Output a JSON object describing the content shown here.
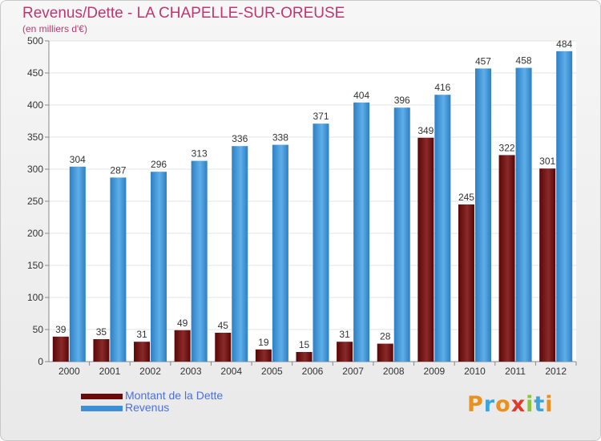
{
  "header": {
    "title": "Revenus/Dette - LA CHAPELLE-SUR-OREUSE",
    "subtitle": "(en milliers d'€)"
  },
  "chart_data": {
    "type": "bar",
    "title": "Revenus/Dette - LA CHAPELLE-SUR-OREUSE",
    "subtitle": "(en milliers d'€)",
    "xlabel": "",
    "ylabel": "",
    "categories": [
      "2000",
      "2001",
      "2002",
      "2003",
      "2004",
      "2005",
      "2006",
      "2007",
      "2008",
      "2009",
      "2010",
      "2011",
      "2012"
    ],
    "series": [
      {
        "name": "Montant de la Dette",
        "values": [
          39,
          35,
          31,
          49,
          45,
          19,
          15,
          31,
          28,
          349,
          245,
          322,
          301
        ],
        "color": "#7a1010"
      },
      {
        "name": "Revenus",
        "values": [
          304,
          287,
          296,
          313,
          336,
          338,
          371,
          404,
          396,
          416,
          457,
          458,
          484
        ],
        "color": "#4aa0e0"
      }
    ],
    "ylim": [
      0,
      500
    ],
    "yticks": [
      0,
      50,
      100,
      150,
      200,
      250,
      300,
      350,
      400,
      450,
      500
    ],
    "grid": true,
    "legend_position": "bottom-left"
  },
  "legend": [
    {
      "label": "Montant de la Dette",
      "color": "#6b0a0a"
    },
    {
      "label": "Revenus",
      "color": "#3d8fd6"
    }
  ],
  "logo": {
    "letters": [
      "P",
      "r",
      "o",
      "x",
      "i",
      "t",
      "i"
    ],
    "colors": [
      "#e89020",
      "#3aa5dc",
      "#e89020",
      "#e23a2a",
      "#8bc53f",
      "#3aa5dc",
      "#e89020"
    ]
  }
}
